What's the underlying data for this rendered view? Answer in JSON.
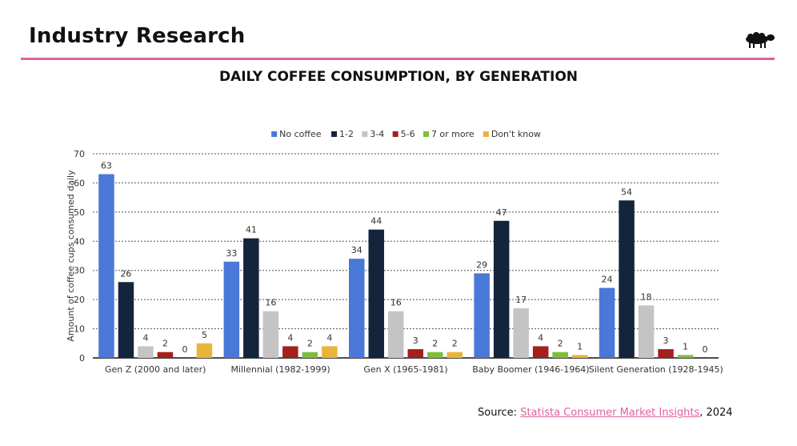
{
  "header": {
    "title": "Industry Research",
    "logo_icon": "sheep-logo-icon"
  },
  "source": {
    "prefix": "Source: ",
    "link_text": "Statista Consumer Market Insights",
    "suffix": ", 2024"
  },
  "colors": {
    "accent": "#e0609e",
    "series": [
      "#4a78d8",
      "#15243d",
      "#c4c4c4",
      "#a3201d",
      "#7dbd3a",
      "#e8b43a"
    ]
  },
  "chart_data": {
    "type": "bar",
    "title": "DAILY COFFEE CONSUMPTION, BY GENERATION",
    "xlabel": "",
    "ylabel": "Amount of coffee cups consumed daily",
    "ylim": [
      0,
      70
    ],
    "yticks": [
      0,
      10,
      20,
      30,
      40,
      50,
      60,
      70
    ],
    "grid": true,
    "legend_position": "top-center",
    "categories": [
      "Gen Z (2000 and later)",
      "Millennial (1982-1999)",
      "Gen X (1965-1981)",
      "Baby Boomer (1946-1964)",
      "Silent Generation (1928-1945)"
    ],
    "series": [
      {
        "name": "No coffee",
        "values": [
          63,
          33,
          34,
          29,
          24
        ]
      },
      {
        "name": "1-2",
        "values": [
          26,
          41,
          44,
          47,
          54
        ]
      },
      {
        "name": "3-4",
        "values": [
          4,
          16,
          16,
          17,
          18
        ]
      },
      {
        "name": "5-6",
        "values": [
          2,
          4,
          3,
          4,
          3
        ]
      },
      {
        "name": "7 or more",
        "values": [
          0,
          2,
          2,
          2,
          1
        ]
      },
      {
        "name": "Don't know",
        "values": [
          5,
          4,
          2,
          1,
          0
        ]
      }
    ]
  }
}
